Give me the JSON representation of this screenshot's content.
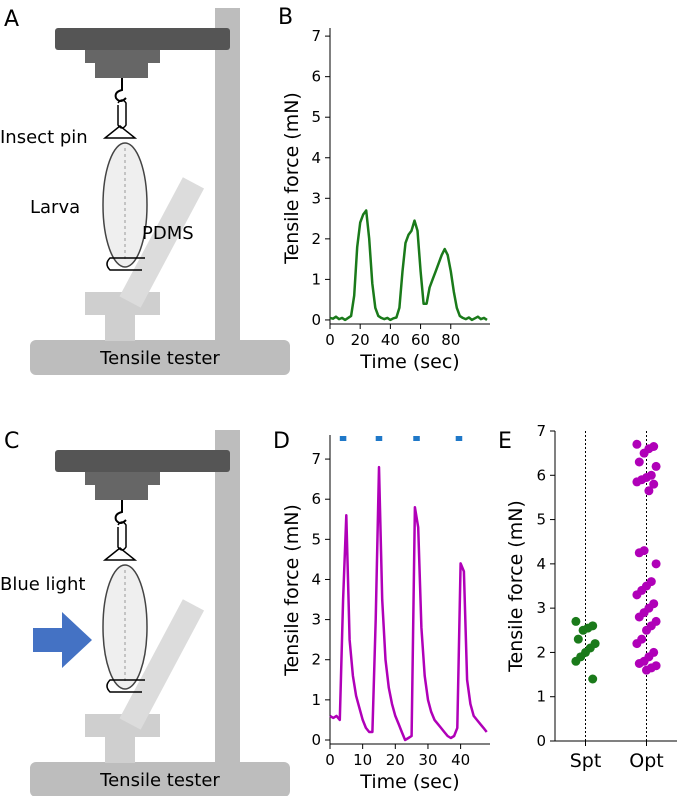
{
  "diagram_a": {
    "panel": "A",
    "pin": "Insect pin",
    "larva": "Larva",
    "pdms": "PDMS",
    "base": "Tensile tester"
  },
  "diagram_c": {
    "panel": "C",
    "light": "Blue light",
    "base": "Tensile tester"
  },
  "chart_data": [
    {
      "type": "line",
      "label": "B",
      "xlabel": "Time (sec)",
      "ylabel": "Tensile force (mN)",
      "x": [
        0,
        2,
        4,
        6,
        8,
        10,
        12,
        14,
        16,
        18,
        20,
        22,
        24,
        26,
        28,
        30,
        32,
        34,
        36,
        38,
        40,
        42,
        44,
        46,
        48,
        50,
        52,
        54,
        56,
        58,
        60,
        62,
        64,
        66,
        68,
        70,
        72,
        74,
        76,
        78,
        80,
        82,
        84,
        86,
        88,
        90,
        92,
        94,
        96,
        98,
        100,
        102,
        104
      ],
      "series": [
        {
          "color": "#1a7a1a",
          "values": [
            0.05,
            0.03,
            0.08,
            0.02,
            0.05,
            0.0,
            0.05,
            0.1,
            0.6,
            1.8,
            2.4,
            2.6,
            2.7,
            2.0,
            0.9,
            0.3,
            0.1,
            0.05,
            0.02,
            0.05,
            0.0,
            0.04,
            0.06,
            0.3,
            1.2,
            1.9,
            2.1,
            2.2,
            2.45,
            2.2,
            1.2,
            0.4,
            0.4,
            0.8,
            1.0,
            1.2,
            1.4,
            1.6,
            1.75,
            1.6,
            1.2,
            0.7,
            0.3,
            0.1,
            0.05,
            0.02,
            0.06,
            0.0,
            0.04,
            0.08,
            0.02,
            0.05,
            0.0
          ]
        }
      ],
      "xlim": [
        0,
        106
      ],
      "ylim": [
        -0.1,
        7.2
      ],
      "xticks": [
        0,
        20,
        40,
        60,
        80
      ],
      "yticks": [
        0,
        1,
        2,
        3,
        4,
        5,
        6,
        7
      ]
    },
    {
      "type": "line",
      "label": "D",
      "xlabel": "Time (sec)",
      "ylabel": "Tensile force (mN)",
      "x": [
        0,
        1,
        2,
        3,
        4,
        5,
        6,
        7,
        8,
        9,
        10,
        11,
        12,
        13,
        14,
        15,
        16,
        17,
        18,
        19,
        20,
        21,
        22,
        23,
        24,
        25,
        26,
        27,
        28,
        29,
        30,
        31,
        32,
        33,
        34,
        35,
        36,
        37,
        38,
        39,
        40,
        41,
        42,
        43,
        44,
        45,
        46,
        47,
        48
      ],
      "series": [
        {
          "color": "#b000b8",
          "values": [
            0.6,
            0.55,
            0.6,
            0.5,
            3.5,
            5.6,
            2.5,
            1.6,
            1.1,
            0.8,
            0.5,
            0.3,
            0.2,
            0.2,
            3.0,
            6.8,
            3.5,
            2.0,
            1.3,
            0.9,
            0.6,
            0.4,
            0.2,
            0.0,
            0.05,
            0.1,
            5.8,
            5.3,
            2.8,
            1.6,
            1.0,
            0.7,
            0.5,
            0.4,
            0.3,
            0.2,
            0.1,
            0.05,
            0.1,
            0.3,
            4.4,
            4.2,
            1.5,
            0.9,
            0.6,
            0.5,
            0.4,
            0.3,
            0.2
          ]
        }
      ],
      "stimuli": {
        "color": "#1f78c8",
        "intervals": [
          [
            3,
            5
          ],
          [
            14,
            16
          ],
          [
            25.5,
            27.5
          ],
          [
            38.5,
            40.5
          ]
        ]
      },
      "xlim": [
        0,
        49
      ],
      "ylim": [
        -0.1,
        7.6
      ],
      "xticks": [
        0,
        10,
        20,
        30,
        40
      ],
      "yticks": [
        0,
        1,
        2,
        3,
        4,
        5,
        6,
        7
      ]
    },
    {
      "type": "strip",
      "label": "E",
      "ylabel": "Tensile force (mN)",
      "categories": [
        "Spt",
        "Opt"
      ],
      "series": [
        {
          "color": "#1a7a1a",
          "values": [
            2.7,
            2.6,
            2.55,
            2.5,
            2.3,
            2.2,
            2.1,
            2.0,
            1.9,
            1.8,
            1.4
          ]
        },
        {
          "color": "#b000b8",
          "values": [
            6.7,
            6.65,
            6.6,
            6.5,
            6.3,
            6.2,
            6.0,
            5.95,
            5.9,
            5.85,
            5.8,
            5.65,
            4.3,
            4.25,
            4.0,
            3.6,
            3.5,
            3.4,
            3.3,
            3.1,
            3.0,
            2.9,
            2.8,
            2.7,
            2.6,
            2.5,
            2.3,
            2.2,
            2.0,
            1.9,
            1.8,
            1.75,
            1.7,
            1.65,
            1.6
          ]
        }
      ],
      "ylim": [
        0,
        7
      ],
      "yticks": [
        0,
        1,
        2,
        3,
        4,
        5,
        6,
        7
      ]
    }
  ]
}
